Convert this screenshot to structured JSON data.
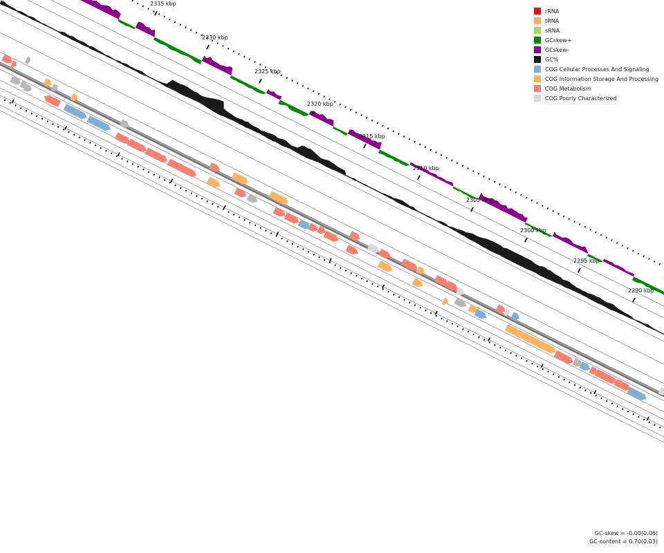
{
  "legend": {
    "items": [
      {
        "label": "rRNA",
        "color": "#d7191c",
        "icon": "square-swatch"
      },
      {
        "label": "tRNA",
        "color": "#fdae61",
        "icon": "square-swatch"
      },
      {
        "label": "sRNA",
        "color": "#a6d96a",
        "icon": "square-swatch"
      },
      {
        "label": "GCskew+",
        "color": "#008800",
        "icon": "square-swatch"
      },
      {
        "label": "GCskew-",
        "color": "#8b008b",
        "icon": "square-swatch"
      },
      {
        "label": "GC%",
        "color": "#1a1a1a",
        "icon": "square-swatch"
      },
      {
        "label": "COG Cellular Processes And Signaling",
        "color": "#7fb0d5",
        "icon": "square-swatch"
      },
      {
        "label": "COG Information Storage And Processing",
        "color": "#fdb462",
        "icon": "square-swatch"
      },
      {
        "label": "COG Metabolism",
        "color": "#fa8072",
        "icon": "square-swatch"
      },
      {
        "label": "COG Poorly Characterized",
        "color": "#d9d9d9",
        "icon": "square-swatch"
      }
    ]
  },
  "scale": {
    "unit": "kbp",
    "ticks": [
      {
        "value": 2335,
        "label": "2335 kbp"
      },
      {
        "value": 2330,
        "label": "2330 kbp"
      },
      {
        "value": 2325,
        "label": "2325 kbp"
      },
      {
        "value": 2320,
        "label": "2320 kbp"
      },
      {
        "value": 2315,
        "label": "2315 kbp"
      },
      {
        "value": 2310,
        "label": "2310 kbp"
      },
      {
        "value": 2305,
        "label": "2305 kbp"
      },
      {
        "value": 2300,
        "label": "2300 kbp"
      },
      {
        "value": 2295,
        "label": "2295 kbp"
      },
      {
        "value": 2290,
        "label": "2290 kbp"
      }
    ]
  },
  "stats": {
    "gc_skew": "GC-skew = -0.00(0.06)",
    "gc_content": "GC-content = 0.70(0.03)"
  },
  "colors": {
    "backbone": "#777777",
    "ring_line": "#999999",
    "cog_metabolism": "#fa8072",
    "cog_info": "#fdb462",
    "cog_cellular": "#7fb0d5",
    "cog_poor": "#d9d9d9",
    "gray_feature": "#b8b8b8",
    "gc": "#1a1a1a",
    "skew_pos": "#008800",
    "skew_neg": "#8b008b"
  }
}
